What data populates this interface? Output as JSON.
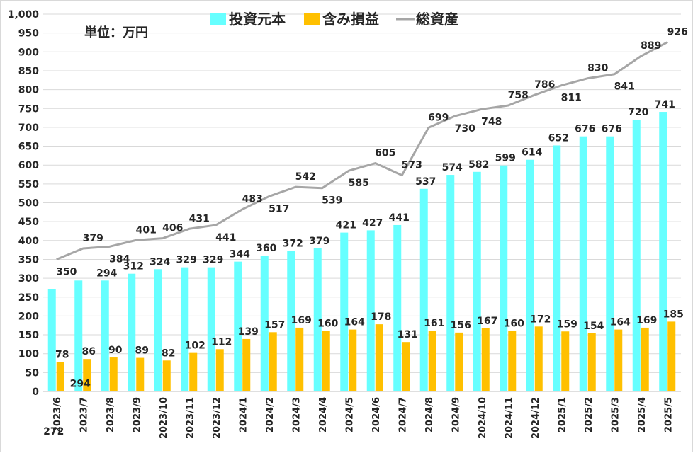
{
  "chart_data": {
    "type": "bar",
    "unit_label": "単位：万円",
    "categories": [
      "2023/6",
      "2023/7",
      "2023/8",
      "2023/9",
      "2023/10",
      "2023/11",
      "2023/12",
      "2024/1",
      "2024/2",
      "2024/3",
      "2024/4",
      "2024/5",
      "2024/6",
      "2024/7",
      "2024/8",
      "2024/9",
      "2024/10",
      "2024/11",
      "2024/12",
      "2025/1",
      "2025/2",
      "2025/3",
      "2025/4",
      "2025/5"
    ],
    "ylim": [
      0,
      1000
    ],
    "yticks": [
      "0",
      "50",
      "100",
      "150",
      "200",
      "250",
      "300",
      "350",
      "400",
      "450",
      "500",
      "550",
      "600",
      "650",
      "700",
      "750",
      "800",
      "850",
      "900",
      "950",
      "1,000"
    ],
    "grid": true,
    "legend_position": "top",
    "series": [
      {
        "name": "投資元本",
        "type": "bar",
        "color": "#66FFFF",
        "values": [
          272,
          294,
          294,
          312,
          324,
          329,
          329,
          344,
          360,
          372,
          379,
          421,
          427,
          441,
          537,
          574,
          582,
          599,
          614,
          652,
          676,
          676,
          720,
          741
        ]
      },
      {
        "name": "含み損益",
        "type": "bar",
        "color": "#FFC000",
        "values": [
          78,
          86,
          90,
          89,
          82,
          102,
          112,
          139,
          157,
          169,
          160,
          164,
          178,
          131,
          161,
          156,
          167,
          160,
          172,
          159,
          154,
          164,
          169,
          185
        ]
      },
      {
        "name": "総資産",
        "type": "line",
        "color": "#A6A6A6",
        "values": [
          350,
          379,
          384,
          401,
          406,
          431,
          441,
          483,
          517,
          542,
          539,
          585,
          605,
          573,
          699,
          730,
          748,
          758,
          786,
          811,
          830,
          841,
          889,
          926
        ]
      }
    ]
  }
}
